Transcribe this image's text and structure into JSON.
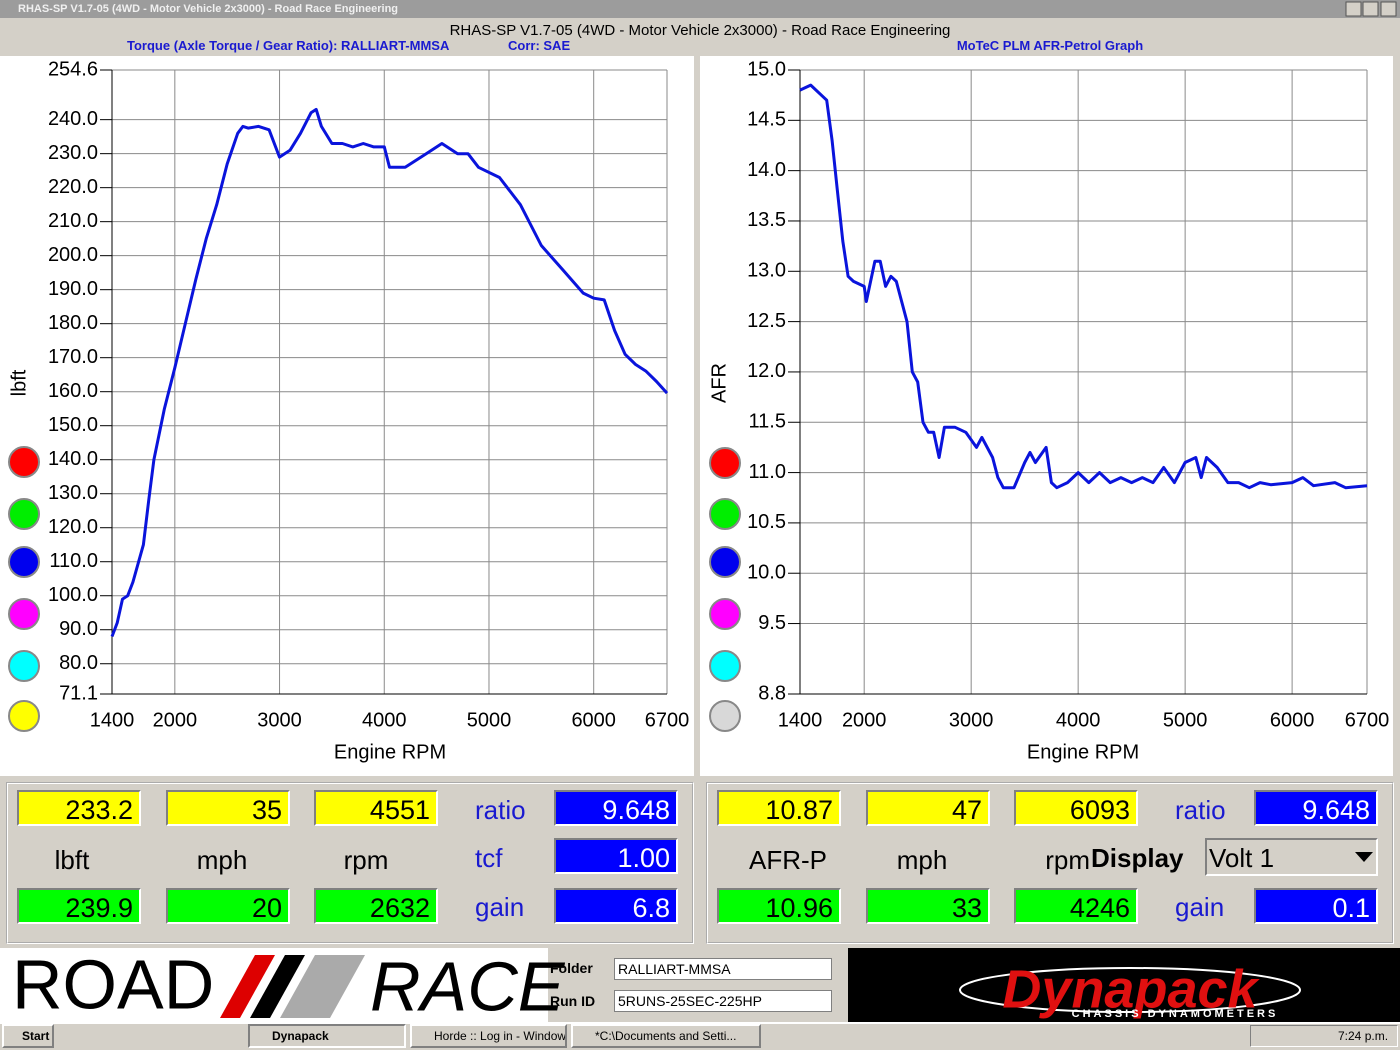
{
  "window": {
    "title": "RHAS-SP V1.7-05  (4WD - Motor Vehicle 2x3000) - Road Race Engineering"
  },
  "app_title": "RHAS-SP V1.7-05  (4WD - Motor Vehicle 2x3000) - Road Race Engineering",
  "chart_data": [
    {
      "type": "line",
      "title": "Torque (Axle Torque / Gear Ratio): RALLIART-MMSA",
      "subtitle": "Corr: SAE",
      "x_label": "Engine RPM",
      "y_label": "lbft",
      "color": "#0a14dc",
      "grid": true,
      "xlim": [
        1400,
        6700
      ],
      "xticks": [
        1400,
        2000,
        3000,
        4000,
        5000,
        6000,
        6700
      ],
      "ylim": [
        71.1,
        254.6
      ],
      "yticks": [
        71.1,
        {
          "value": 80,
          "label": "80.0"
        },
        {
          "value": 90,
          "label": "90.0"
        },
        {
          "value": 100,
          "label": "100.0"
        },
        {
          "value": 110,
          "label": "110.0"
        },
        {
          "value": 120,
          "label": "120.0"
        },
        {
          "value": 130,
          "label": "130.0"
        },
        {
          "value": 140,
          "label": "140.0"
        },
        {
          "value": 150,
          "label": "150.0"
        },
        {
          "value": 160,
          "label": "160.0"
        },
        {
          "value": 170,
          "label": "170.0"
        },
        {
          "value": 180,
          "label": "180.0"
        },
        {
          "value": 190,
          "label": "190.0"
        },
        {
          "value": 200,
          "label": "200.0"
        },
        {
          "value": 210,
          "label": "210.0"
        },
        {
          "value": 220,
          "label": "220.0"
        },
        {
          "value": 230,
          "label": "230.0"
        },
        {
          "value": 240,
          "label": "240.0"
        },
        254.6
      ],
      "x": [
        1400,
        1450,
        1500,
        1550,
        1600,
        1700,
        1750,
        1800,
        1900,
        2000,
        2100,
        2200,
        2300,
        2400,
        2500,
        2600,
        2650,
        2700,
        2800,
        2900,
        3000,
        3100,
        3200,
        3300,
        3350,
        3400,
        3500,
        3600,
        3700,
        3800,
        3900,
        4000,
        4050,
        4200,
        4400,
        4550,
        4700,
        4800,
        4900,
        5100,
        5300,
        5500,
        5700,
        5900,
        6000,
        6100,
        6200,
        6300,
        6400,
        6500,
        6600,
        6700
      ],
      "values": [
        88,
        92,
        99,
        100,
        104,
        115,
        128,
        140,
        155,
        167,
        180,
        193,
        205,
        215,
        227,
        236,
        238,
        237.5,
        238,
        237,
        229,
        231,
        236,
        242,
        243,
        238,
        233,
        233,
        232,
        233,
        232,
        232,
        226,
        226,
        230,
        233,
        230,
        230,
        226,
        223,
        215,
        203,
        196,
        189,
        187.5,
        187,
        178,
        171,
        168,
        166,
        163,
        159.6
      ]
    },
    {
      "type": "line",
      "title": "MoTeC PLM AFR-Petrol Graph",
      "x_label": "Engine RPM",
      "y_label": "AFR",
      "color": "#0a14dc",
      "grid": true,
      "xlim": [
        1400,
        6700
      ],
      "xticks": [
        1400,
        2000,
        3000,
        4000,
        5000,
        6000,
        6700
      ],
      "ylim": [
        8.8,
        15.0
      ],
      "yticks": [
        8.8,
        9.5,
        {
          "value": 10,
          "label": "10.0"
        },
        10.5,
        {
          "value": 11,
          "label": "11.0"
        },
        11.5,
        {
          "value": 12,
          "label": "12.0"
        },
        12.5,
        {
          "value": 13,
          "label": "13.0"
        },
        13.5,
        {
          "value": 14,
          "label": "14.0"
        },
        14.5,
        {
          "value": 15,
          "label": "15.0"
        }
      ],
      "x": [
        1400,
        1500,
        1600,
        1650,
        1700,
        1750,
        1800,
        1850,
        1900,
        2000,
        2020,
        2100,
        2150,
        2200,
        2250,
        2300,
        2400,
        2450,
        2500,
        2550,
        2600,
        2650,
        2700,
        2750,
        2850,
        2950,
        3050,
        3100,
        3200,
        3250,
        3300,
        3400,
        3500,
        3550,
        3600,
        3700,
        3750,
        3800,
        3900,
        4000,
        4100,
        4200,
        4300,
        4400,
        4500,
        4600,
        4700,
        4800,
        4900,
        5000,
        5100,
        5150,
        5200,
        5300,
        5400,
        5500,
        5600,
        5700,
        5800,
        6000,
        6100,
        6200,
        6400,
        6500,
        6700
      ],
      "values": [
        14.8,
        14.85,
        14.75,
        14.7,
        14.3,
        13.8,
        13.3,
        12.95,
        12.9,
        12.85,
        12.7,
        13.1,
        13.1,
        12.85,
        12.95,
        12.9,
        12.5,
        12.0,
        11.9,
        11.5,
        11.4,
        11.4,
        11.15,
        11.45,
        11.45,
        11.4,
        11.25,
        11.35,
        11.15,
        10.95,
        10.85,
        10.85,
        11.1,
        11.2,
        11.1,
        11.25,
        10.9,
        10.85,
        10.9,
        11.0,
        10.9,
        11.0,
        10.9,
        10.95,
        10.9,
        10.95,
        10.9,
        11.05,
        10.9,
        11.1,
        11.15,
        10.95,
        11.15,
        11.05,
        10.9,
        10.9,
        10.85,
        10.9,
        10.88,
        10.9,
        10.95,
        10.87,
        10.9,
        10.85,
        10.87
      ]
    }
  ],
  "left_panel": {
    "readout_top": [
      "233.2",
      "35",
      "4551"
    ],
    "units": [
      "lbft",
      "mph",
      "rpm"
    ],
    "readout_bottom": [
      "239.9",
      "20",
      "2632"
    ],
    "param_labels": [
      "ratio",
      "tcf",
      "gain"
    ],
    "param_values": [
      "9.648",
      "1.00",
      "6.8"
    ]
  },
  "right_panel": {
    "readout_top": [
      "10.87",
      "47",
      "6093"
    ],
    "units": [
      "AFR-P",
      "mph",
      "rpm"
    ],
    "readout_bottom": [
      "10.96",
      "33",
      "4246"
    ],
    "ratio_label": "ratio",
    "ratio_value": "9.648",
    "display_label": "Display",
    "display_value": "Volt 1",
    "gain_label": "gain",
    "gain_value": "0.1"
  },
  "banner": {
    "road": "ROAD",
    "race": "RACE",
    "folder_label": "Folder",
    "folder": "RALLIART-MMSA",
    "run_id_label": "Run ID",
    "run_id": "5RUNS-25SEC-225HP",
    "brand": "Dynapack",
    "brand_sub": "CHASSIS DYNAMOMETERS"
  },
  "taskbar": {
    "start": "Start",
    "items": [
      "Dynapack",
      "Horde :: Log in - Window...",
      "*C:\\Documents and Setti..."
    ],
    "clock": "7:24 p.m."
  }
}
